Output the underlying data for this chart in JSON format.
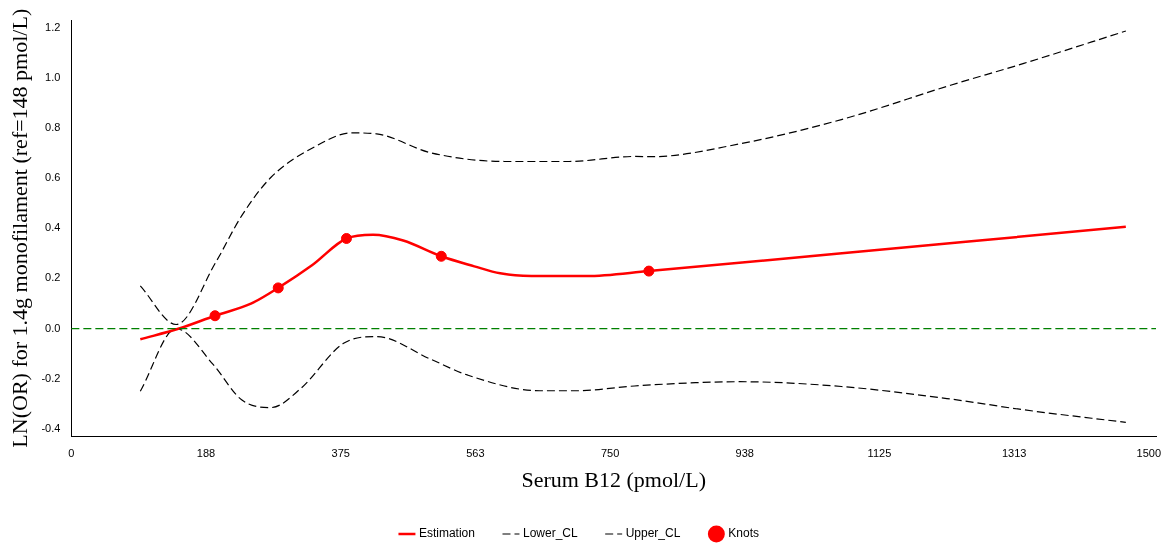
{
  "chart_data": {
    "type": "line",
    "xlabel": "Serum B12 (pmol/L)",
    "ylabel": "LN(OR) for 1.4g monofilament (ref=148 pmol/L)",
    "xlim": [
      0,
      1510
    ],
    "ylim": [
      -0.43,
      1.23
    ],
    "xticks": [
      0,
      {
        "value": 187.5,
        "label": "188"
      },
      375,
      {
        "value": 562.5,
        "label": "563"
      },
      750,
      {
        "value": 937.5,
        "label": "938"
      },
      1125,
      {
        "value": 1312.5,
        "label": "1313"
      },
      1500
    ],
    "yticks": [
      {
        "value": -0.4,
        "label": "-0.4"
      },
      {
        "value": -0.2,
        "label": "-0.2"
      },
      {
        "value": 0,
        "label": "0.0"
      },
      {
        "value": 0.2,
        "label": "0.2"
      },
      {
        "value": 0.4,
        "label": "0.4"
      },
      {
        "value": 0.6,
        "label": "0.6"
      },
      {
        "value": 0.8,
        "label": "0.8"
      },
      {
        "value": 1,
        "label": "1.0"
      },
      {
        "value": 1.2,
        "label": "1.2"
      }
    ],
    "grid": false,
    "legend": "bottom",
    "marker": "none",
    "ref_lines": [
      {
        "axis": "y",
        "value": 0,
        "color": "#008000",
        "line_style": "dashed"
      }
    ],
    "series": [
      {
        "name": "Estimation",
        "color": "#ff0000",
        "line_style": "solid",
        "x": [
          96,
          150,
          200,
          250,
          288,
          335,
          383,
          420,
          462,
          515,
          561,
          597,
          653,
          717,
          804,
          1468
        ],
        "values": [
          -0.043,
          0,
          0.051,
          0.099,
          0.162,
          0.252,
          0.359,
          0.374,
          0.351,
          0.288,
          0.248,
          0.22,
          0.209,
          0.209,
          0.229,
          0.406
        ]
      },
      {
        "name": "Lower_CL",
        "color": "#000000",
        "line_style": "dashed",
        "x": [
          96,
          146,
          197,
          237,
          278,
          319,
          379,
          425,
          500,
          551,
          652,
          703,
          784,
          869,
          930,
          1072,
          1224,
          1326,
          1468
        ],
        "values": [
          -0.25,
          0,
          -0.142,
          -0.284,
          -0.315,
          -0.24,
          -0.059,
          -0.032,
          -0.122,
          -0.185,
          -0.248,
          -0.248,
          -0.229,
          -0.216,
          -0.212,
          -0.231,
          -0.281,
          -0.324,
          -0.374
        ]
      },
      {
        "name": "Upper_CL",
        "color": "#000000",
        "line_style": "dashed",
        "x": [
          96,
          146,
          201,
          237,
          278,
          339,
          390,
          425,
          500,
          603,
          693,
          784,
          808,
          930,
          1072,
          1224,
          1326,
          1468
        ],
        "values": [
          0.17,
          0.016,
          0.264,
          0.449,
          0.603,
          0.725,
          0.78,
          0.776,
          0.701,
          0.666,
          0.666,
          0.686,
          0.685,
          0.736,
          0.833,
          0.97,
          1.057,
          1.186
        ]
      },
      {
        "name": "Knots",
        "type": "scatter",
        "marker": "circle",
        "color": "#ff0000",
        "x": [
          200,
          288,
          383,
          515,
          804
        ],
        "values": [
          0.051,
          0.162,
          0.359,
          0.288,
          0.229
        ]
      }
    ]
  }
}
